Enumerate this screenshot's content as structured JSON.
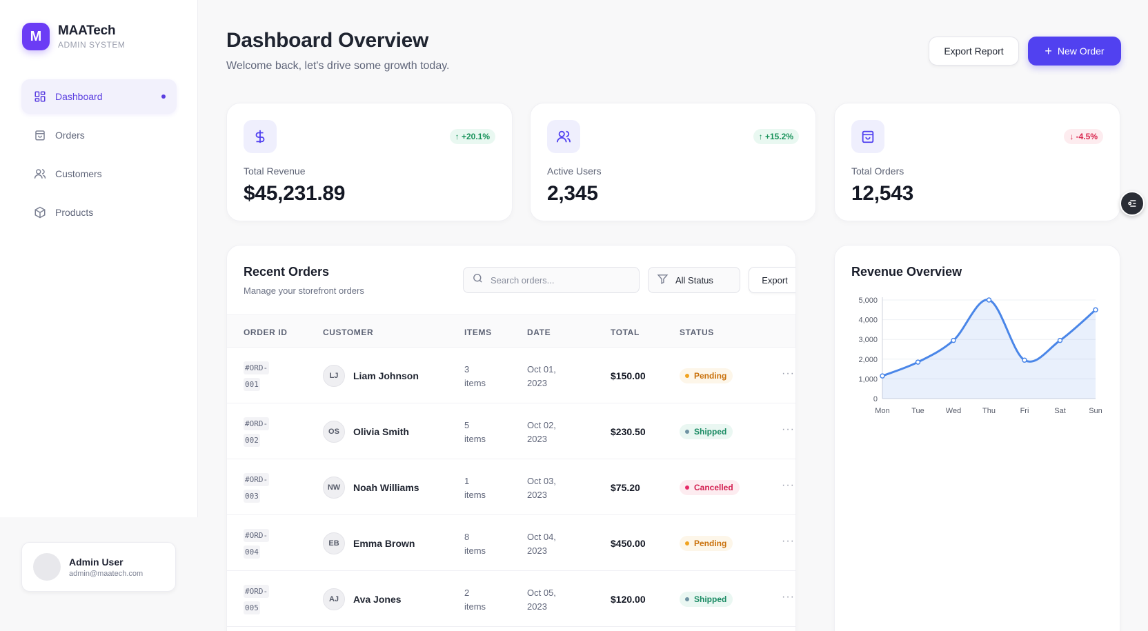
{
  "sidebar": {
    "brand_initial": "M",
    "brand_name": "MAATech",
    "brand_sub": "ADMIN SYSTEM",
    "items": [
      {
        "label": "Dashboard",
        "icon": "dashboard-grid-icon",
        "active": true
      },
      {
        "label": "Orders",
        "icon": "shopping-bag-icon"
      },
      {
        "label": "Customers",
        "icon": "users-icon"
      },
      {
        "label": "Products",
        "icon": "package-icon"
      }
    ],
    "user": {
      "name": "Admin User",
      "email": "admin@maatech.com"
    }
  },
  "header": {
    "title": "Dashboard Overview",
    "subtitle": "Welcome back, let's drive some growth today.",
    "export_report_label": "Export Report",
    "new_order_label": "New Order"
  },
  "stats": [
    {
      "label": "Total Revenue",
      "value": "$45,231.89",
      "change": "↑ +20.1%",
      "trend": "up",
      "icon": "dollar-icon"
    },
    {
      "label": "Active Users",
      "value": "2,345",
      "change": "↑ +15.2%",
      "trend": "up",
      "icon": "users-icon"
    },
    {
      "label": "Total Orders",
      "value": "12,543",
      "change": "↓ -4.5%",
      "trend": "down",
      "icon": "shopping-bag-icon"
    }
  ],
  "orders": {
    "title": "Recent Orders",
    "subtitle": "Manage your storefront orders",
    "search_placeholder": "Search orders...",
    "status_filter": "All Status",
    "export_label": "Export",
    "columns": [
      "ORDER ID",
      "CUSTOMER",
      "ITEMS",
      "DATE",
      "TOTAL",
      "STATUS"
    ],
    "rows": [
      {
        "id_a": "#ORD-",
        "id_b": "001",
        "initials": "LJ",
        "customer": "Liam Johnson",
        "items_a": "3",
        "items_b": "items",
        "date_a": "Oct 01,",
        "date_b": "2023",
        "total": "$150.00",
        "status": "Pending"
      },
      {
        "id_a": "#ORD-",
        "id_b": "002",
        "initials": "OS",
        "customer": "Olivia Smith",
        "items_a": "5",
        "items_b": "items",
        "date_a": "Oct 02,",
        "date_b": "2023",
        "total": "$230.50",
        "status": "Shipped"
      },
      {
        "id_a": "#ORD-",
        "id_b": "003",
        "initials": "NW",
        "customer": "Noah Williams",
        "items_a": "1",
        "items_b": "items",
        "date_a": "Oct 03,",
        "date_b": "2023",
        "total": "$75.20",
        "status": "Cancelled"
      },
      {
        "id_a": "#ORD-",
        "id_b": "004",
        "initials": "EB",
        "customer": "Emma Brown",
        "items_a": "8",
        "items_b": "items",
        "date_a": "Oct 04,",
        "date_b": "2023",
        "total": "$450.00",
        "status": "Pending"
      },
      {
        "id_a": "#ORD-",
        "id_b": "005",
        "initials": "AJ",
        "customer": "Ava Jones",
        "items_a": "2",
        "items_b": "items",
        "date_a": "Oct 05,",
        "date_b": "2023",
        "total": "$120.00",
        "status": "Shipped"
      }
    ],
    "more_glyph": "···"
  },
  "revenue": {
    "title": "Revenue Overview"
  },
  "chart_data": {
    "type": "area",
    "categories": [
      "Mon",
      "Tue",
      "Wed",
      "Thu",
      "Fri",
      "Sat",
      "Sun"
    ],
    "values": [
      1150,
      1850,
      2950,
      5000,
      1950,
      2950,
      4500
    ],
    "title": "Revenue Overview",
    "ylim": [
      0,
      5000
    ],
    "yticks": [
      0,
      1000,
      2000,
      3000,
      4000,
      5000
    ],
    "ytick_labels": [
      "0",
      "1,000",
      "2,000",
      "3,000",
      "4,000",
      "5,000"
    ],
    "grid": true,
    "color": "#4a86e8"
  },
  "colors": {
    "accent": "#5141f0",
    "brand": "#6b3cf5",
    "up": "#18925a",
    "down": "#d9264e"
  }
}
